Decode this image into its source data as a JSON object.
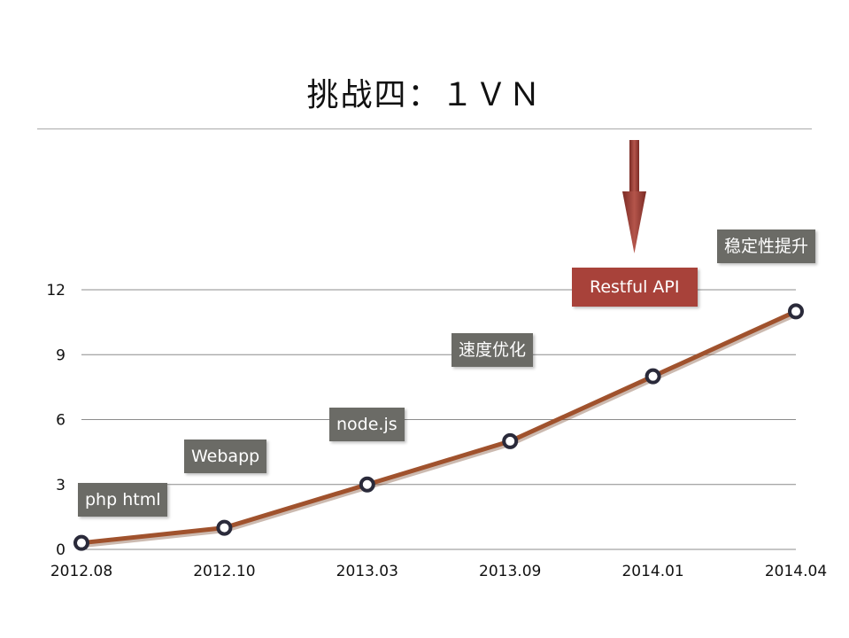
{
  "slide": {
    "title": "挑战四：１ＶＮ"
  },
  "chart_data": {
    "type": "line",
    "categories": [
      "2012.08",
      "2012.10",
      "2013.03",
      "2013.09",
      "2014.01",
      "2014.04"
    ],
    "series": [
      {
        "values": [
          0.3,
          1,
          3,
          5,
          8,
          11
        ],
        "color": "#a0522d"
      }
    ],
    "yticks": [
      0,
      3,
      6,
      9,
      12
    ],
    "ylim": [
      0,
      12
    ],
    "grid": true,
    "annotations": [
      {
        "text": "php html",
        "style": "normal"
      },
      {
        "text": "Webapp",
        "style": "normal"
      },
      {
        "text": "node.js",
        "style": "normal"
      },
      {
        "text": "速度优化",
        "style": "normal"
      },
      {
        "text": "Restful API",
        "style": "highlight"
      },
      {
        "text": "稳定性提升",
        "style": "normal"
      }
    ],
    "colors": {
      "line": "#a0522d",
      "marker_ring": "#2a2a3a",
      "annotation_box": "#6b6b66",
      "annotation_highlight": "#a8423a",
      "arrow": "#9b3b33"
    }
  }
}
